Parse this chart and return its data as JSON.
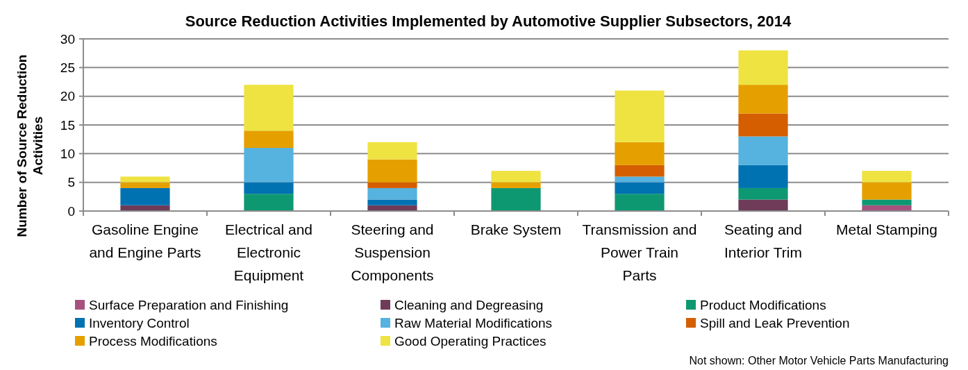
{
  "chart_data": {
    "type": "bar",
    "stacked": true,
    "title": "Source Reduction Activities Implemented by Automotive Supplier Subsectors, 2014",
    "ylabel": "Number of Source Reduction Activities",
    "categories": [
      "Gasoline Engine and Engine Parts",
      "Electrical and Electronic Equipment",
      "Steering and Suspension Components",
      "Brake System",
      "Transmission and Power Train Parts",
      "Seating and Interior Trim",
      "Metal Stamping"
    ],
    "series": [
      {
        "name": "Surface Preparation and Finishing",
        "color": "#a6527f",
        "values": [
          0,
          0,
          0,
          0,
          0,
          0,
          1
        ]
      },
      {
        "name": "Cleaning and Degreasing",
        "color": "#6e3b58",
        "values": [
          1,
          0,
          1,
          0,
          0,
          2,
          0
        ]
      },
      {
        "name": "Product Modifications",
        "color": "#0e9872",
        "values": [
          0,
          3,
          0,
          4,
          3,
          2,
          1
        ]
      },
      {
        "name": "Inventory Control",
        "color": "#0072b2",
        "values": [
          3,
          2,
          1,
          0,
          2,
          4,
          0
        ]
      },
      {
        "name": "Raw Material Modifications",
        "color": "#56b2de",
        "values": [
          0,
          6,
          2,
          0,
          1,
          5,
          0
        ]
      },
      {
        "name": "Spill and Leak Prevention",
        "color": "#d55e00",
        "values": [
          0,
          0,
          1,
          0,
          2,
          4,
          0
        ]
      },
      {
        "name": "Process Modifications",
        "color": "#e5a000",
        "values": [
          1,
          3,
          4,
          1,
          4,
          5,
          3
        ]
      },
      {
        "name": "Good Operating Practices",
        "color": "#efe342",
        "values": [
          1,
          8,
          3,
          2,
          9,
          6,
          2
        ]
      }
    ],
    "ylim": [
      0,
      30
    ],
    "yticks": [
      0,
      5,
      10,
      15,
      20,
      25,
      30
    ],
    "grid": "y",
    "legend": "bottom",
    "annotations": [
      "Not shown: Other Motor Vehicle Parts Manufacturing"
    ]
  }
}
